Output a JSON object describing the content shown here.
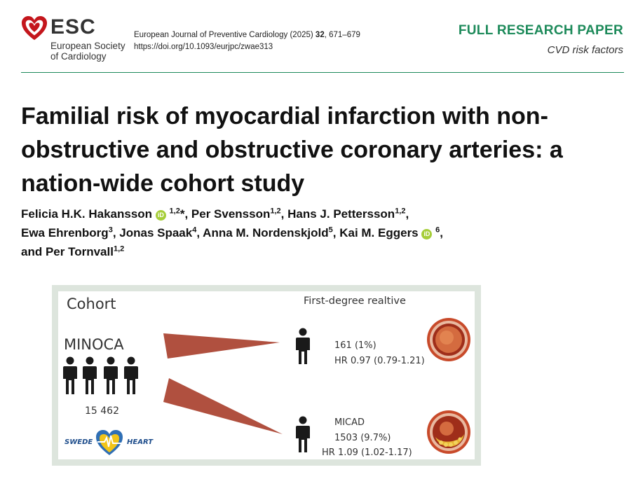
{
  "header": {
    "logo_name": "ESC",
    "logo_sub_line1": "European Society",
    "logo_sub_line2": "of Cardiology",
    "journal_line": "European Journal of Preventive Cardiology (2025)",
    "journal_volume": "32",
    "journal_pages": ", 671–679",
    "doi": "https://doi.org/10.1093/eurjpc/zwae313",
    "paper_type": "FULL RESEARCH PAPER",
    "category": "CVD risk factors"
  },
  "colors": {
    "accent_green": "#1d8a5a",
    "esc_red": "#c4161c",
    "wedge_red": "#b0503f",
    "orcid_green": "#a6ce39"
  },
  "title": "Familial risk of myocardial infarction with non-obstructive and obstructive coronary arteries: a nation-wide cohort study",
  "authors": {
    "a1_name": "Felicia H.K. Hakansson",
    "a1_sup": "1,2",
    "a1_mark": "*",
    "a2_name": "Per Svensson",
    "a2_sup": "1,2",
    "a3_name": "Hans J. Pettersson",
    "a3_sup": "1,2",
    "a4_name": "Ewa Ehrenborg",
    "a4_sup": "3",
    "a5_name": "Jonas Spaak",
    "a5_sup": "4",
    "a6_name": "Anna M. Nordenskjold",
    "a6_sup": "5",
    "a7_name": "Kai M. Eggers",
    "a7_sup": "6",
    "a8_name": "Per Tornvall",
    "a8_sup": "1,2",
    "sep": ", ",
    "and": "and ",
    "orcid_glyph": "iD"
  },
  "graphical_abstract": {
    "cohort_label": "Cohort",
    "relative_label": "First-degree realtive",
    "cohort_name": "MINOCA",
    "cohort_n": "15 462",
    "registry_left": "SWEDE",
    "registry_right": "HEART",
    "row1_n": "161 (1%)",
    "row1_hr": "HR 0.97 (0.79-1.21)",
    "row2_label": "MICAD",
    "row2_n": "1503 (9.7%)",
    "row2_hr": "HR 1.09 (1.02-1.17)"
  }
}
